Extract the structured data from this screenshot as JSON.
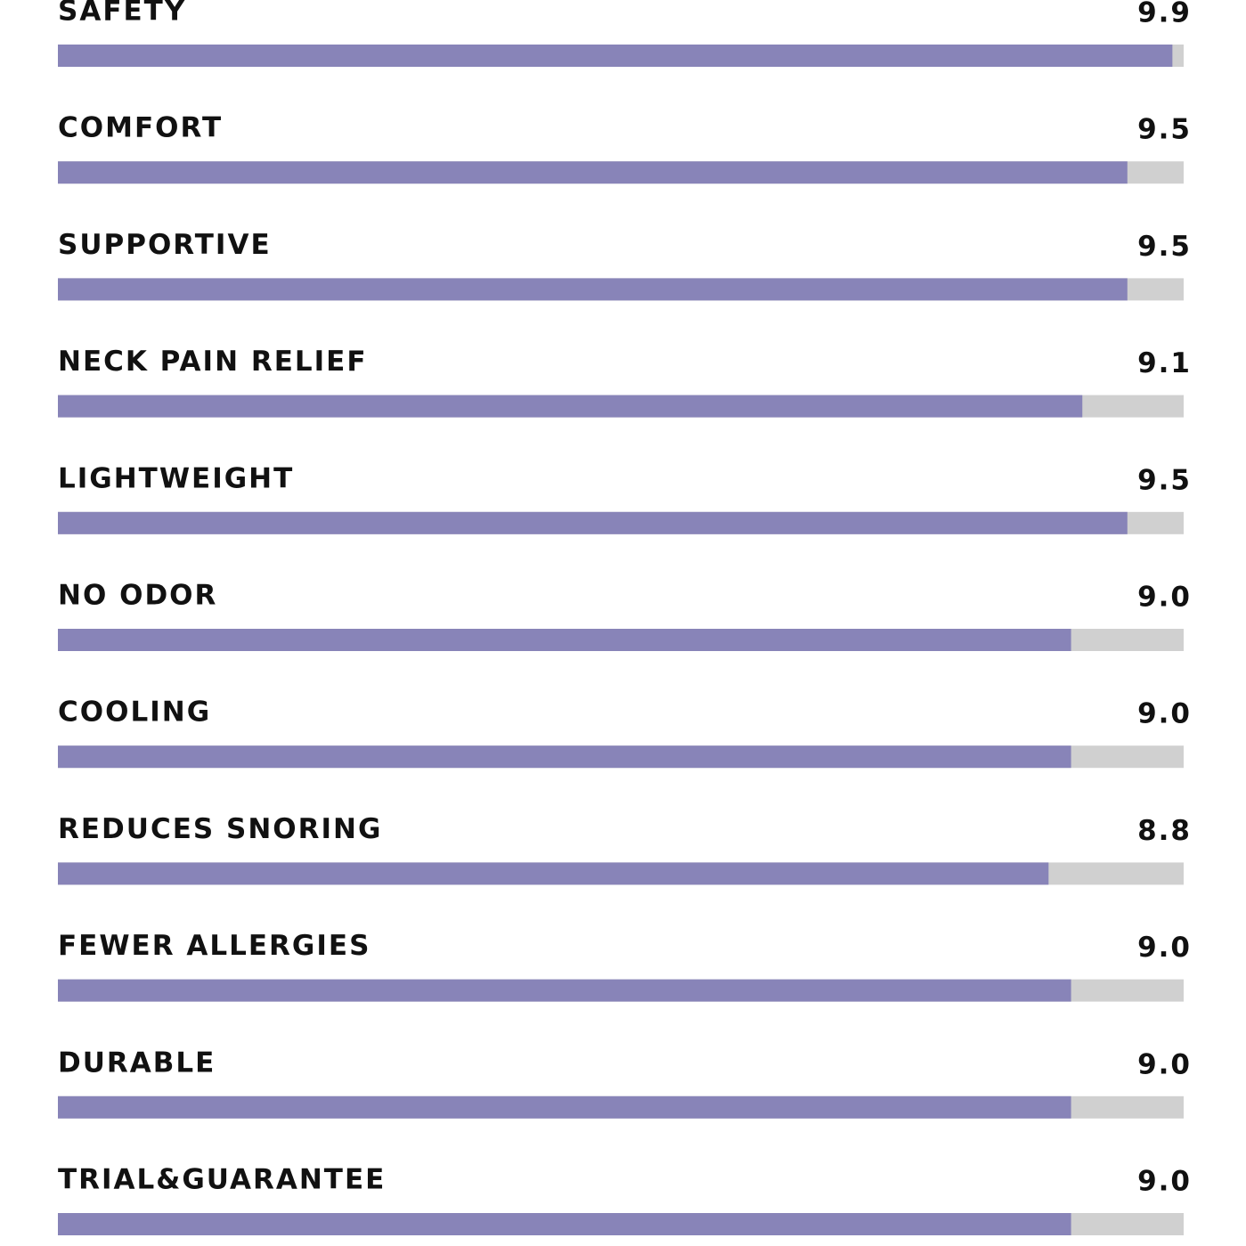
{
  "chart_data": {
    "type": "bar",
    "orientation": "horizontal",
    "categories": [
      "SAFETY",
      "COMFORT",
      "SUPPORTIVE",
      "NECK PAIN RELIEF",
      "LIGHTWEIGHT",
      "NO ODOR",
      "COOLING",
      "REDUCES SNORING",
      "FEWER ALLERGIES",
      "DURABLE",
      "TRIAL&GUARANTEE"
    ],
    "values": [
      9.9,
      9.5,
      9.5,
      9.1,
      9.5,
      9.0,
      9.0,
      8.8,
      9.0,
      9.0,
      9.0
    ],
    "value_labels": [
      "9.9",
      "9.5",
      "9.5",
      "9.1",
      "9.5",
      "9.0",
      "9.0",
      "8.8",
      "9.0",
      "9.0",
      "9.0"
    ],
    "xlim": [
      0,
      10
    ],
    "color": "#8884b8",
    "track_color": "#d0d0d0"
  }
}
